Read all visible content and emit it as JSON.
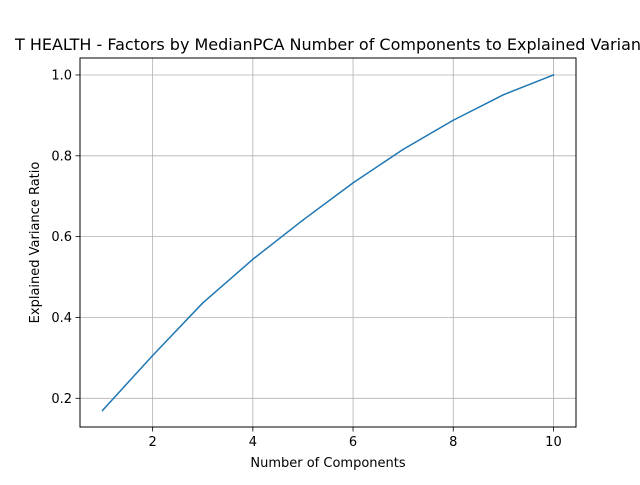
{
  "chart_data": {
    "type": "line",
    "title": "T HEALTH - Factors by MedianPCA Number of Components to Explained Varian",
    "xlabel": "Number of Components",
    "ylabel": "Explained Variance Ratio",
    "xlim": [
      0.55,
      10.45
    ],
    "ylim": [
      0.129,
      1.042
    ],
    "xticks": [
      2,
      4,
      6,
      8,
      10
    ],
    "yticks": [
      0.2,
      0.4,
      0.6,
      0.8,
      1.0
    ],
    "xtick_labels": [
      "2",
      "4",
      "6",
      "8",
      "10"
    ],
    "ytick_labels": [
      "0.2",
      "0.4",
      "0.6",
      "0.8",
      "1.0"
    ],
    "grid": true,
    "series": [
      {
        "color": "#1f77b4",
        "x": [
          1,
          2,
          3,
          4,
          5,
          6,
          7,
          8,
          9,
          10
        ],
        "values": [
          0.17,
          0.306,
          0.436,
          0.544,
          0.641,
          0.733,
          0.816,
          0.888,
          0.951,
          1.0
        ]
      }
    ]
  }
}
